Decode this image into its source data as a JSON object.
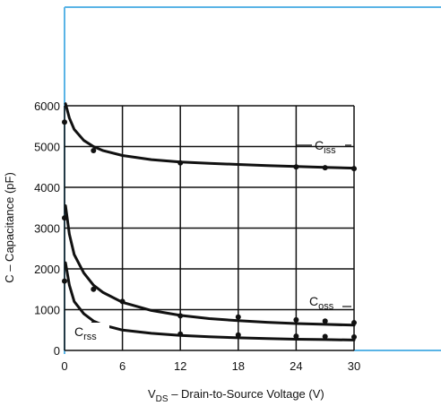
{
  "chart_data": {
    "type": "line",
    "xlabel": "V",
    "xlabel_sub": "DS",
    "xlabel_rest": " – Drain-to-Source Voltage (V)",
    "ylabel": "C – Capacitance (pF)",
    "xlim": [
      0,
      30
    ],
    "ylim": [
      0,
      6000
    ],
    "xticks": [
      0,
      6,
      12,
      18,
      24,
      30
    ],
    "yticks": [
      0,
      1000,
      2000,
      3000,
      4000,
      5000,
      6000
    ],
    "grid": true,
    "border_color": "#5ab4e6",
    "series": [
      {
        "name": "C",
        "name_sub": "iss",
        "curve": [
          [
            0.1,
            6050
          ],
          [
            0.5,
            5700
          ],
          [
            1,
            5420
          ],
          [
            2,
            5150
          ],
          [
            3,
            5000
          ],
          [
            4,
            4900
          ],
          [
            6,
            4780
          ],
          [
            9,
            4680
          ],
          [
            12,
            4620
          ],
          [
            15,
            4590
          ],
          [
            18,
            4560
          ],
          [
            21,
            4535
          ],
          [
            24,
            4510
          ],
          [
            27,
            4490
          ],
          [
            30,
            4470
          ]
        ],
        "points": [
          [
            0,
            5600
          ],
          [
            3,
            4900
          ],
          [
            12,
            4600
          ],
          [
            24,
            4500
          ],
          [
            27,
            4480
          ],
          [
            30,
            4460
          ]
        ]
      },
      {
        "name": "C",
        "name_sub": "oss",
        "curve": [
          [
            0.1,
            3550
          ],
          [
            0.5,
            2850
          ],
          [
            1,
            2350
          ],
          [
            2,
            1900
          ],
          [
            3,
            1600
          ],
          [
            4,
            1420
          ],
          [
            6,
            1180
          ],
          [
            9,
            980
          ],
          [
            12,
            860
          ],
          [
            15,
            780
          ],
          [
            18,
            730
          ],
          [
            21,
            690
          ],
          [
            24,
            660
          ],
          [
            27,
            640
          ],
          [
            30,
            620
          ]
        ],
        "points": [
          [
            0,
            3250
          ],
          [
            3,
            1500
          ],
          [
            6,
            1200
          ],
          [
            12,
            850
          ],
          [
            18,
            820
          ],
          [
            24,
            750
          ],
          [
            27,
            720
          ],
          [
            30,
            680
          ]
        ]
      },
      {
        "name": "C",
        "name_sub": "rss",
        "curve": [
          [
            0.1,
            2150
          ],
          [
            0.5,
            1600
          ],
          [
            1,
            1200
          ],
          [
            2,
            900
          ],
          [
            3,
            720
          ],
          [
            4,
            620
          ],
          [
            6,
            500
          ],
          [
            9,
            420
          ],
          [
            12,
            370
          ],
          [
            15,
            335
          ],
          [
            18,
            310
          ],
          [
            21,
            290
          ],
          [
            24,
            275
          ],
          [
            27,
            265
          ],
          [
            30,
            255
          ]
        ],
        "points": [
          [
            0,
            1700
          ],
          [
            3,
            650
          ],
          [
            12,
            400
          ],
          [
            18,
            380
          ],
          [
            24,
            350
          ],
          [
            27,
            340
          ],
          [
            30,
            330
          ]
        ]
      }
    ]
  }
}
